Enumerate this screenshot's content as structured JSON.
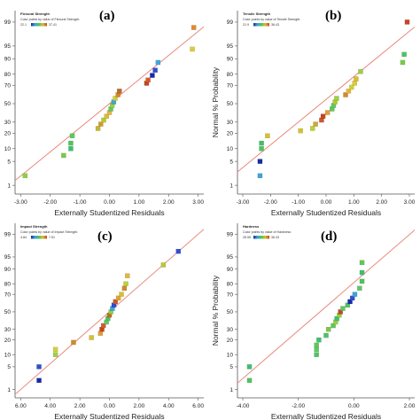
{
  "chart_data": [
    {
      "type": "scatter",
      "panel_label": "(a)",
      "legend_title": "Flexural Strength",
      "legend_subtitle": "Color points by value of Flexural Strength:",
      "legend_min": "22.1",
      "legend_max": "37.41",
      "xlabel": "Externally Studentized Residuals",
      "ylabel": "",
      "xticks": [
        "-3.00",
        "-2.00",
        "-1.00",
        "0.00",
        "1.00",
        "2.00",
        "3.00"
      ],
      "yticks": [
        "1",
        "5",
        "10",
        "20",
        "30",
        "50",
        "70",
        "80",
        "90",
        "95",
        "99"
      ],
      "xlim": [
        -3.3,
        3.3
      ],
      "ylim": [
        0.5,
        99.6
      ],
      "fit_line": [
        [
          -3.4,
          1.2
        ],
        [
          3.4,
          98.8
        ]
      ],
      "x": [
        -2.95,
        -1.6,
        -1.35,
        -1.35,
        -1.3,
        -0.4,
        -0.3,
        -0.2,
        -0.1,
        0.0,
        0.05,
        0.1,
        0.15,
        0.2,
        0.3,
        0.35,
        1.3,
        1.35,
        1.5,
        1.6,
        1.7,
        2.9,
        2.95
      ],
      "y": [
        2,
        7,
        10,
        13,
        18,
        24,
        28,
        32,
        36,
        40,
        44,
        48,
        52,
        56,
        60,
        64,
        72,
        75,
        79,
        83,
        88,
        94,
        98.5
      ],
      "colors": [
        "#8fd13b",
        "#7bc74a",
        "#3fbf6c",
        "#4fc35f",
        "#5ec858",
        "#c0b830",
        "#d49a30",
        "#b8c835",
        "#d6c032",
        "#e6b440",
        "#63c66a",
        "#9bd040",
        "#3fa4d4",
        "#cfd038",
        "#d08a2c",
        "#c06a28",
        "#c84426",
        "#d35a2a",
        "#1a2aa8",
        "#2f4fd0",
        "#3fa8dc",
        "#e0c83a",
        "#e08a30"
      ]
    },
    {
      "type": "scatter",
      "panel_label": "(b)",
      "legend_title": "Tensile Strength",
      "legend_subtitle": "Color points by value of Tensile Strength:",
      "legend_min": "21.9",
      "legend_max": "36.43",
      "xlabel": "Externally Studentized Residuals",
      "ylabel": "Normal % Probability",
      "xticks": [
        "-3.00",
        "-2.00",
        "-1.00",
        "0.00",
        "1.00",
        "2.00",
        "3.00"
      ],
      "yticks": [
        "1",
        "5",
        "10",
        "20",
        "30",
        "50",
        "70",
        "80",
        "90",
        "95",
        "99"
      ],
      "xlim": [
        -3.2,
        2.7
      ],
      "ylim": [
        0.5,
        99.6
      ],
      "fit_line": [
        [
          -3.3,
          2.2
        ],
        [
          2.8,
          98.8
        ]
      ],
      "x": [
        -2.45,
        -2.45,
        -2.4,
        -2.4,
        -2.2,
        -1.1,
        -0.7,
        -0.6,
        -0.4,
        -0.35,
        -0.2,
        -0.05,
        0.0,
        0.05,
        0.1,
        0.4,
        0.5,
        0.6,
        0.7,
        0.75,
        0.9,
        2.3,
        2.35,
        2.45
      ],
      "y": [
        2,
        5,
        10,
        13,
        18,
        22,
        24,
        28,
        32,
        36,
        40,
        44,
        48,
        52,
        56,
        60,
        64,
        68,
        72,
        76,
        82,
        88,
        92,
        99
      ],
      "colors": [
        "#3fa4d4",
        "#1a2aa8",
        "#4fc35f",
        "#3fbf6c",
        "#d6c032",
        "#d6c032",
        "#bcd03a",
        "#d0a836",
        "#c85a2a",
        "#c84426",
        "#e0a038",
        "#5ec858",
        "#63c66a",
        "#b8c835",
        "#9bd040",
        "#d08a2c",
        "#e6b440",
        "#cfd038",
        "#e0c83a",
        "#d6c032",
        "#9bd040",
        "#7bc74a",
        "#4fc35f",
        "#c84426"
      ]
    },
    {
      "type": "scatter",
      "panel_label": "(c)",
      "legend_title": "Impact Strength",
      "legend_subtitle": "Color points by value of Impact Strength:",
      "legend_min": "4.84",
      "legend_max": "7.51",
      "xlabel": "Externally Studentized Residuals",
      "ylabel": "",
      "xticks": [
        "6.00",
        "4.00",
        "2.00",
        "0.00",
        "2.00",
        "4.00",
        "6.00"
      ],
      "yticks": [
        "1",
        "5",
        "10",
        "20",
        "30",
        "50",
        "70",
        "80",
        "90",
        "95",
        "99"
      ],
      "xlim": [
        -6.3,
        6.3
      ],
      "ylim": [
        0.5,
        99.6
      ],
      "fit_line": [
        [
          -6.4,
          0.6
        ],
        [
          6.4,
          99.4
        ]
      ],
      "x": [
        -4.7,
        -4.7,
        -3.6,
        -3.6,
        -2.4,
        -1.2,
        -0.6,
        -0.5,
        -0.4,
        -0.2,
        -0.1,
        0.0,
        0.1,
        0.2,
        0.3,
        0.4,
        0.6,
        0.8,
        1.0,
        1.1,
        1.2,
        3.6,
        4.6
      ],
      "y": [
        2,
        5,
        10,
        13,
        18,
        22,
        26,
        30,
        34,
        38,
        42,
        46,
        50,
        54,
        58,
        62,
        66,
        70,
        76,
        80,
        86,
        92,
        96.5
      ],
      "colors": [
        "#1a2aa8",
        "#2f4fd0",
        "#9bd040",
        "#cfd038",
        "#d08a2c",
        "#d6c032",
        "#e0a038",
        "#c84426",
        "#d35a2a",
        "#63c66a",
        "#4fc35f",
        "#c06a28",
        "#8fd13b",
        "#3fa4d4",
        "#2f4fd0",
        "#c85a2a",
        "#e0a038",
        "#d6c032",
        "#d08a2c",
        "#bcd03a",
        "#e6b440",
        "#b8c835",
        "#2f4fd0"
      ]
    },
    {
      "type": "scatter",
      "panel_label": "(d)",
      "legend_title": "Hardness",
      "legend_subtitle": "Color points by value of Hardness:",
      "legend_min": "26.55",
      "legend_max": "36.33",
      "xlabel": "Externally Studentized Residuals",
      "ylabel": "Normal % Probability",
      "xticks": [
        "-4.00",
        "-2.00",
        "0.00",
        "2.00"
      ],
      "yticks": [
        "1",
        "5",
        "10",
        "20",
        "30",
        "50",
        "70",
        "80",
        "90",
        "95",
        "99"
      ],
      "xlim": [
        -4.3,
        3.1
      ],
      "ylim": [
        0.5,
        99.6
      ],
      "fit_line": [
        [
          -4.4,
          1.4
        ],
        [
          3.2,
          99.4
        ]
      ],
      "x": [
        -3.8,
        -3.8,
        -1.0,
        -1.0,
        -1.0,
        -0.9,
        -0.6,
        -0.5,
        -0.3,
        -0.2,
        -0.15,
        -0.05,
        0.0,
        0.1,
        0.3,
        0.4,
        0.5,
        0.6,
        0.8,
        0.9,
        0.9,
        0.9
      ],
      "y": [
        2,
        5,
        10,
        13,
        16,
        20,
        24,
        30,
        34,
        38,
        42,
        46,
        50,
        54,
        58,
        62,
        66,
        70,
        76,
        82,
        88,
        93
      ],
      "colors": [
        "#4fc35f",
        "#3fbf6c",
        "#4fc35f",
        "#63c66a",
        "#5ec858",
        "#3fbf6c",
        "#4fc35f",
        "#7bc74a",
        "#5ec858",
        "#9bd040",
        "#3fbf6c",
        "#8fd13b",
        "#c84426",
        "#63c66a",
        "#4fc35f",
        "#1a2aa8",
        "#2f4fd0",
        "#3fa4d4",
        "#63c66a",
        "#4fc35f",
        "#3fbf6c",
        "#5ec858"
      ]
    }
  ]
}
